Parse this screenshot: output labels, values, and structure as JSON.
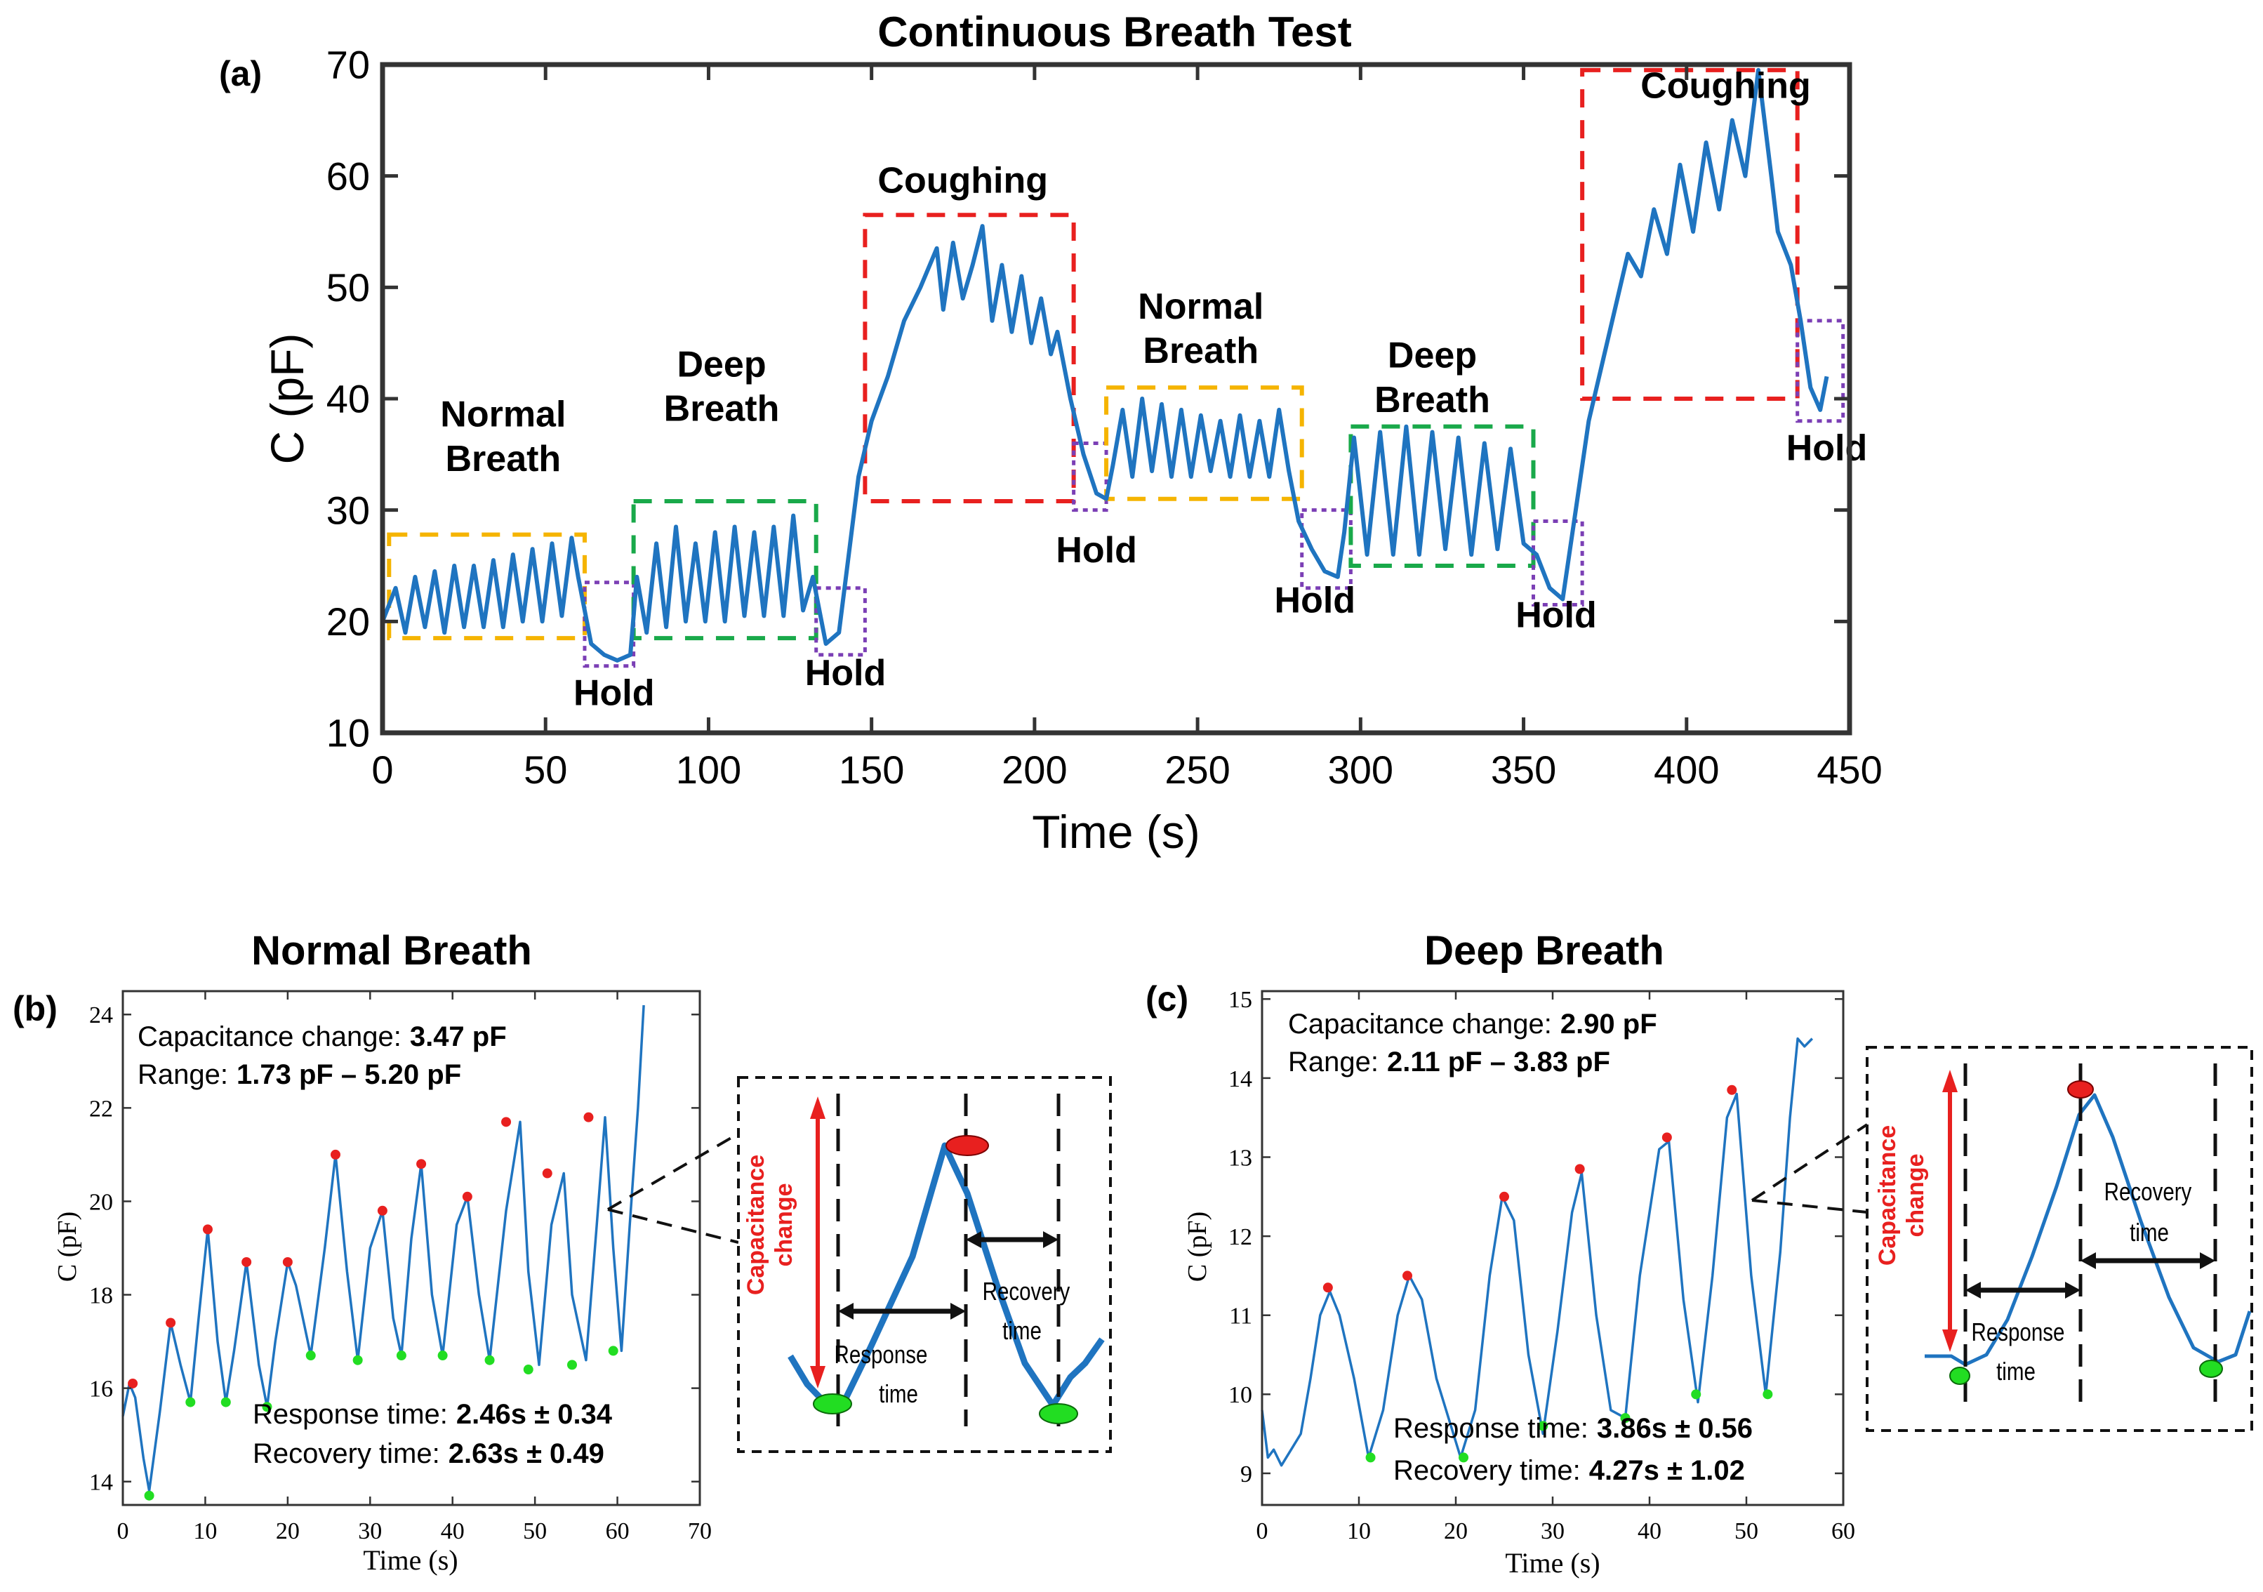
{
  "colors": {
    "series": "#1f74c0",
    "normal_box": "#f5b400",
    "deep_box": "#19a94a",
    "cough_box": "#e8201f",
    "hold_box": "#7b3fb5",
    "arrow": "#e8201f",
    "peak": "#e8201f",
    "valley": "#22dd22"
  },
  "chart_data": [
    {
      "panel": "(a)",
      "type": "line",
      "title": "Continuous Breath Test",
      "xlabel": "Time (s)",
      "ylabel": "C (pF)",
      "xlim": [
        0,
        450
      ],
      "ylim": [
        10,
        70
      ],
      "xticks": [
        "0",
        "50",
        "100",
        "150",
        "200",
        "250",
        "300",
        "350",
        "400",
        "450"
      ],
      "yticks": [
        "10",
        "20",
        "30",
        "40",
        "50",
        "60",
        "70"
      ],
      "series": [
        {
          "name": "Capacitance",
          "x": [
            0,
            4,
            7,
            10,
            13,
            16,
            19,
            22,
            25,
            28,
            31,
            34,
            37,
            40,
            43,
            46,
            49,
            52,
            55,
            58,
            60,
            64,
            68,
            72,
            76,
            78,
            81,
            84,
            87,
            90,
            93,
            96,
            99,
            102,
            105,
            108,
            111,
            114,
            117,
            120,
            123,
            126,
            129,
            132,
            136,
            140,
            143,
            146,
            150,
            155,
            160,
            165,
            170,
            172,
            175,
            178,
            181,
            184,
            187,
            190,
            193,
            196,
            199,
            202,
            205,
            207,
            211,
            215,
            219,
            222,
            224,
            227,
            230,
            233,
            236,
            239,
            242,
            245,
            248,
            251,
            254,
            257,
            260,
            263,
            266,
            269,
            272,
            275,
            278,
            281,
            285,
            289,
            293,
            295,
            298,
            302,
            306,
            310,
            314,
            318,
            322,
            326,
            330,
            334,
            338,
            342,
            346,
            350,
            354,
            358,
            362,
            366,
            370,
            374,
            378,
            382,
            386,
            390,
            394,
            398,
            402,
            406,
            410,
            414,
            418,
            422,
            426,
            428,
            432,
            435,
            438,
            441,
            443
          ],
          "values": [
            20.0,
            23.0,
            19.0,
            24.0,
            19.5,
            24.5,
            19.0,
            25.0,
            19.5,
            25.0,
            19.5,
            25.5,
            19.5,
            26.0,
            20.0,
            26.5,
            20.0,
            27.0,
            20.5,
            27.5,
            24.0,
            18.0,
            17.0,
            16.5,
            17.0,
            24.0,
            19.0,
            27.0,
            19.5,
            28.5,
            20.0,
            27.0,
            20.0,
            28.0,
            20.0,
            28.5,
            20.5,
            28.0,
            20.5,
            28.5,
            20.5,
            29.5,
            21.0,
            24.0,
            18.0,
            19.0,
            26.0,
            33.0,
            38.0,
            42.0,
            47.0,
            50.0,
            53.5,
            48.0,
            54.0,
            49.0,
            52.0,
            55.5,
            47.0,
            52.0,
            46.0,
            51.0,
            45.0,
            49.0,
            44.0,
            46.0,
            40.0,
            35.0,
            31.5,
            31.0,
            34.0,
            39.0,
            33.0,
            40.0,
            33.5,
            39.5,
            33.0,
            39.0,
            33.0,
            38.5,
            33.5,
            38.0,
            33.0,
            38.5,
            33.0,
            38.0,
            33.0,
            39.0,
            33.5,
            29.0,
            26.5,
            24.5,
            24.0,
            28.0,
            36.5,
            26.0,
            37.0,
            26.0,
            37.5,
            26.0,
            37.0,
            26.5,
            36.5,
            26.0,
            36.0,
            26.5,
            35.5,
            27.0,
            26.0,
            23.0,
            22.0,
            30.0,
            38.0,
            43.0,
            48.0,
            53.0,
            51.0,
            57.0,
            53.0,
            61.0,
            55.0,
            63.0,
            57.0,
            65.0,
            60.0,
            69.5,
            60.0,
            55.0,
            52.0,
            47.0,
            41.0,
            39.0,
            42.0
          ]
        }
      ],
      "boxes": [
        {
          "kind": "normal",
          "x": [
            2,
            62
          ],
          "y": [
            18.5,
            27.8
          ]
        },
        {
          "kind": "hold",
          "x": [
            62,
            77
          ],
          "y": [
            16,
            23.5
          ]
        },
        {
          "kind": "deep",
          "x": [
            77,
            133
          ],
          "y": [
            18.5,
            30.8
          ]
        },
        {
          "kind": "hold",
          "x": [
            133,
            148
          ],
          "y": [
            17,
            23
          ]
        },
        {
          "kind": "cough",
          "x": [
            148,
            212
          ],
          "y": [
            30.8,
            56.5
          ]
        },
        {
          "kind": "hold",
          "x": [
            212,
            222
          ],
          "y": [
            30,
            36
          ]
        },
        {
          "kind": "normal",
          "x": [
            222,
            282
          ],
          "y": [
            31,
            41
          ]
        },
        {
          "kind": "hold",
          "x": [
            282,
            297
          ],
          "y": [
            23,
            30
          ]
        },
        {
          "kind": "deep",
          "x": [
            297,
            353
          ],
          "y": [
            25,
            37.5
          ]
        },
        {
          "kind": "hold",
          "x": [
            353,
            368
          ],
          "y": [
            21.5,
            29
          ]
        },
        {
          "kind": "cough",
          "x": [
            368,
            434
          ],
          "y": [
            40,
            69.5
          ]
        },
        {
          "kind": "hold",
          "x": [
            434,
            448
          ],
          "y": [
            38,
            47
          ]
        }
      ],
      "annotations": [
        {
          "text": "Normal",
          "x": 37,
          "y": 37.5
        },
        {
          "text": "Breath",
          "x": 37,
          "y": 33.5
        },
        {
          "text": "Hold",
          "x": 71,
          "y": 12.5
        },
        {
          "text": "Deep",
          "x": 104,
          "y": 42
        },
        {
          "text": "Breath",
          "x": 104,
          "y": 38
        },
        {
          "text": "Hold",
          "x": 142,
          "y": 14.3
        },
        {
          "text": "Coughing",
          "x": 178,
          "y": 58.5
        },
        {
          "text": "Hold",
          "x": 219,
          "y": 25.3
        },
        {
          "text": "Normal",
          "x": 251,
          "y": 47.2
        },
        {
          "text": "Breath",
          "x": 251,
          "y": 43.2
        },
        {
          "text": "Hold",
          "x": 286,
          "y": 20.8
        },
        {
          "text": "Deep",
          "x": 322,
          "y": 42.8
        },
        {
          "text": "Breath",
          "x": 322,
          "y": 38.8
        },
        {
          "text": "Hold",
          "x": 360,
          "y": 19.5
        },
        {
          "text": "Coughing",
          "x": 412,
          "y": 67
        },
        {
          "text": "Hold",
          "x": 443,
          "y": 34.5
        }
      ]
    },
    {
      "panel": "(b)",
      "type": "line",
      "title": "Normal Breath",
      "xlabel": "Time (s)",
      "ylabel": "C (pF)",
      "xlim": [
        0,
        70
      ],
      "ylim": [
        13.5,
        24.5
      ],
      "xticks": [
        "0",
        "10",
        "20",
        "30",
        "40",
        "50",
        "60",
        "70"
      ],
      "yticks": [
        "14",
        "16",
        "18",
        "20",
        "22",
        "24"
      ],
      "series": [
        {
          "name": "Capacitance",
          "x": [
            0,
            0.8,
            1.5,
            2.5,
            3.2,
            4.5,
            5.8,
            7.0,
            8.2,
            9.2,
            10.3,
            11.5,
            12.5,
            13.5,
            15.0,
            16.5,
            17.5,
            18.5,
            20.0,
            21.0,
            22.8,
            24.5,
            25.8,
            27.2,
            28.5,
            30.0,
            31.5,
            32.8,
            33.8,
            35.0,
            36.2,
            37.5,
            38.8,
            40.5,
            41.8,
            43.2,
            44.5,
            46.5,
            48.2,
            49.2,
            50.5,
            52.0,
            53.5,
            54.5,
            56.2,
            57.5,
            58.5,
            59.5,
            60.5,
            61.5,
            62.5,
            63.2
          ],
          "values": [
            15.4,
            16.1,
            15.8,
            14.5,
            13.8,
            15.5,
            17.4,
            16.5,
            15.7,
            17.5,
            19.4,
            17.0,
            15.7,
            16.8,
            18.7,
            16.5,
            15.6,
            17.0,
            18.7,
            18.2,
            16.7,
            19.0,
            21.0,
            18.5,
            16.6,
            19.0,
            19.8,
            17.5,
            16.7,
            19.2,
            20.8,
            18.0,
            16.7,
            19.5,
            20.1,
            18.0,
            16.6,
            19.8,
            21.7,
            18.5,
            16.5,
            19.5,
            20.6,
            18.0,
            16.6,
            19.5,
            21.8,
            19.0,
            16.8,
            19.5,
            22.0,
            24.2
          ]
        }
      ],
      "peaks": [
        [
          1.2,
          16.1
        ],
        [
          5.8,
          17.4
        ],
        [
          10.3,
          19.4
        ],
        [
          15.0,
          18.7
        ],
        [
          20.0,
          18.7
        ],
        [
          25.8,
          21.0
        ],
        [
          31.5,
          19.8
        ],
        [
          36.2,
          20.8
        ],
        [
          41.8,
          20.1
        ],
        [
          46.5,
          21.7
        ],
        [
          51.5,
          20.6
        ],
        [
          56.5,
          21.8
        ]
      ],
      "valleys": [
        [
          3.2,
          13.7
        ],
        [
          8.2,
          15.7
        ],
        [
          12.5,
          15.7
        ],
        [
          17.5,
          15.6
        ],
        [
          22.8,
          16.7
        ],
        [
          28.5,
          16.6
        ],
        [
          33.8,
          16.7
        ],
        [
          38.8,
          16.7
        ],
        [
          44.5,
          16.6
        ],
        [
          49.2,
          16.4
        ],
        [
          54.5,
          16.5
        ],
        [
          59.5,
          16.8
        ]
      ],
      "stats": {
        "capacitance_label": "Capacitance change:",
        "capacitance_value": "3.47 pF",
        "range_label": "Range:",
        "range_value": "1.73 pF – 5.20 pF",
        "response_label": "Response time:",
        "response_value": "2.46s ± 0.34",
        "recovery_label": "Recovery time:",
        "recovery_value": "2.63s ± 0.49"
      },
      "inset_labels": {
        "cap1": "Capacitance",
        "cap2": "change",
        "resp1": "Response",
        "resp2": "time",
        "rec1": "Recovery",
        "rec2": "time"
      }
    },
    {
      "panel": "(c)",
      "type": "line",
      "title": "Deep Breath",
      "xlabel": "Time (s)",
      "ylabel": "C (pF)",
      "xlim": [
        0,
        60
      ],
      "ylim": [
        8.6,
        15.1
      ],
      "xticks": [
        "0",
        "10",
        "20",
        "30",
        "40",
        "50",
        "60"
      ],
      "yticks": [
        "9",
        "10",
        "11",
        "12",
        "13",
        "14",
        "15"
      ],
      "series": [
        {
          "name": "Capacitance",
          "x": [
            0,
            0.6,
            1.2,
            2.0,
            3.0,
            4.0,
            5.0,
            6.0,
            7.0,
            8.0,
            9.5,
            11.0,
            12.5,
            14.0,
            15.2,
            16.5,
            18.0,
            20.5,
            22.0,
            23.5,
            24.8,
            26.0,
            27.5,
            29.0,
            30.5,
            32.0,
            33.0,
            34.5,
            36.0,
            37.5,
            39.0,
            41.0,
            42.0,
            43.5,
            45.0,
            46.5,
            48.0,
            49.0,
            50.5,
            52.0,
            53.5,
            54.5,
            55.3,
            56.0,
            56.8
          ],
          "values": [
            9.8,
            9.2,
            9.3,
            9.1,
            9.3,
            9.5,
            10.2,
            11.0,
            11.3,
            11.0,
            10.2,
            9.2,
            9.8,
            11.0,
            11.5,
            11.2,
            10.2,
            9.2,
            9.8,
            11.5,
            12.5,
            12.2,
            10.5,
            9.5,
            10.8,
            12.3,
            12.8,
            11.0,
            9.8,
            9.7,
            11.5,
            13.1,
            13.2,
            11.2,
            9.9,
            11.5,
            13.5,
            13.8,
            11.5,
            10.0,
            11.8,
            13.5,
            14.5,
            14.4,
            14.5
          ]
        }
      ],
      "peaks": [
        [
          6.8,
          11.35
        ],
        [
          15.0,
          11.5
        ],
        [
          25.0,
          12.5
        ],
        [
          32.8,
          12.85
        ],
        [
          41.8,
          13.25
        ],
        [
          48.5,
          13.85
        ]
      ],
      "valleys": [
        [
          11.2,
          9.2
        ],
        [
          20.8,
          9.2
        ],
        [
          29.0,
          9.6
        ],
        [
          37.5,
          9.7
        ],
        [
          44.8,
          10.0
        ],
        [
          52.2,
          10.0
        ]
      ],
      "stats": {
        "capacitance_label": "Capacitance change:",
        "capacitance_value": "2.90 pF",
        "range_label": "Range:",
        "range_value": "2.11 pF – 3.83 pF",
        "response_label": "Response time:",
        "response_value": "3.86s ± 0.56",
        "recovery_label": "Recovery time:",
        "recovery_value": "4.27s ± 1.02"
      },
      "inset_labels": {
        "cap1": "Capacitance",
        "cap2": "change",
        "resp1": "Response",
        "resp2": "time",
        "rec1": "Recovery",
        "rec2": "time"
      }
    }
  ]
}
